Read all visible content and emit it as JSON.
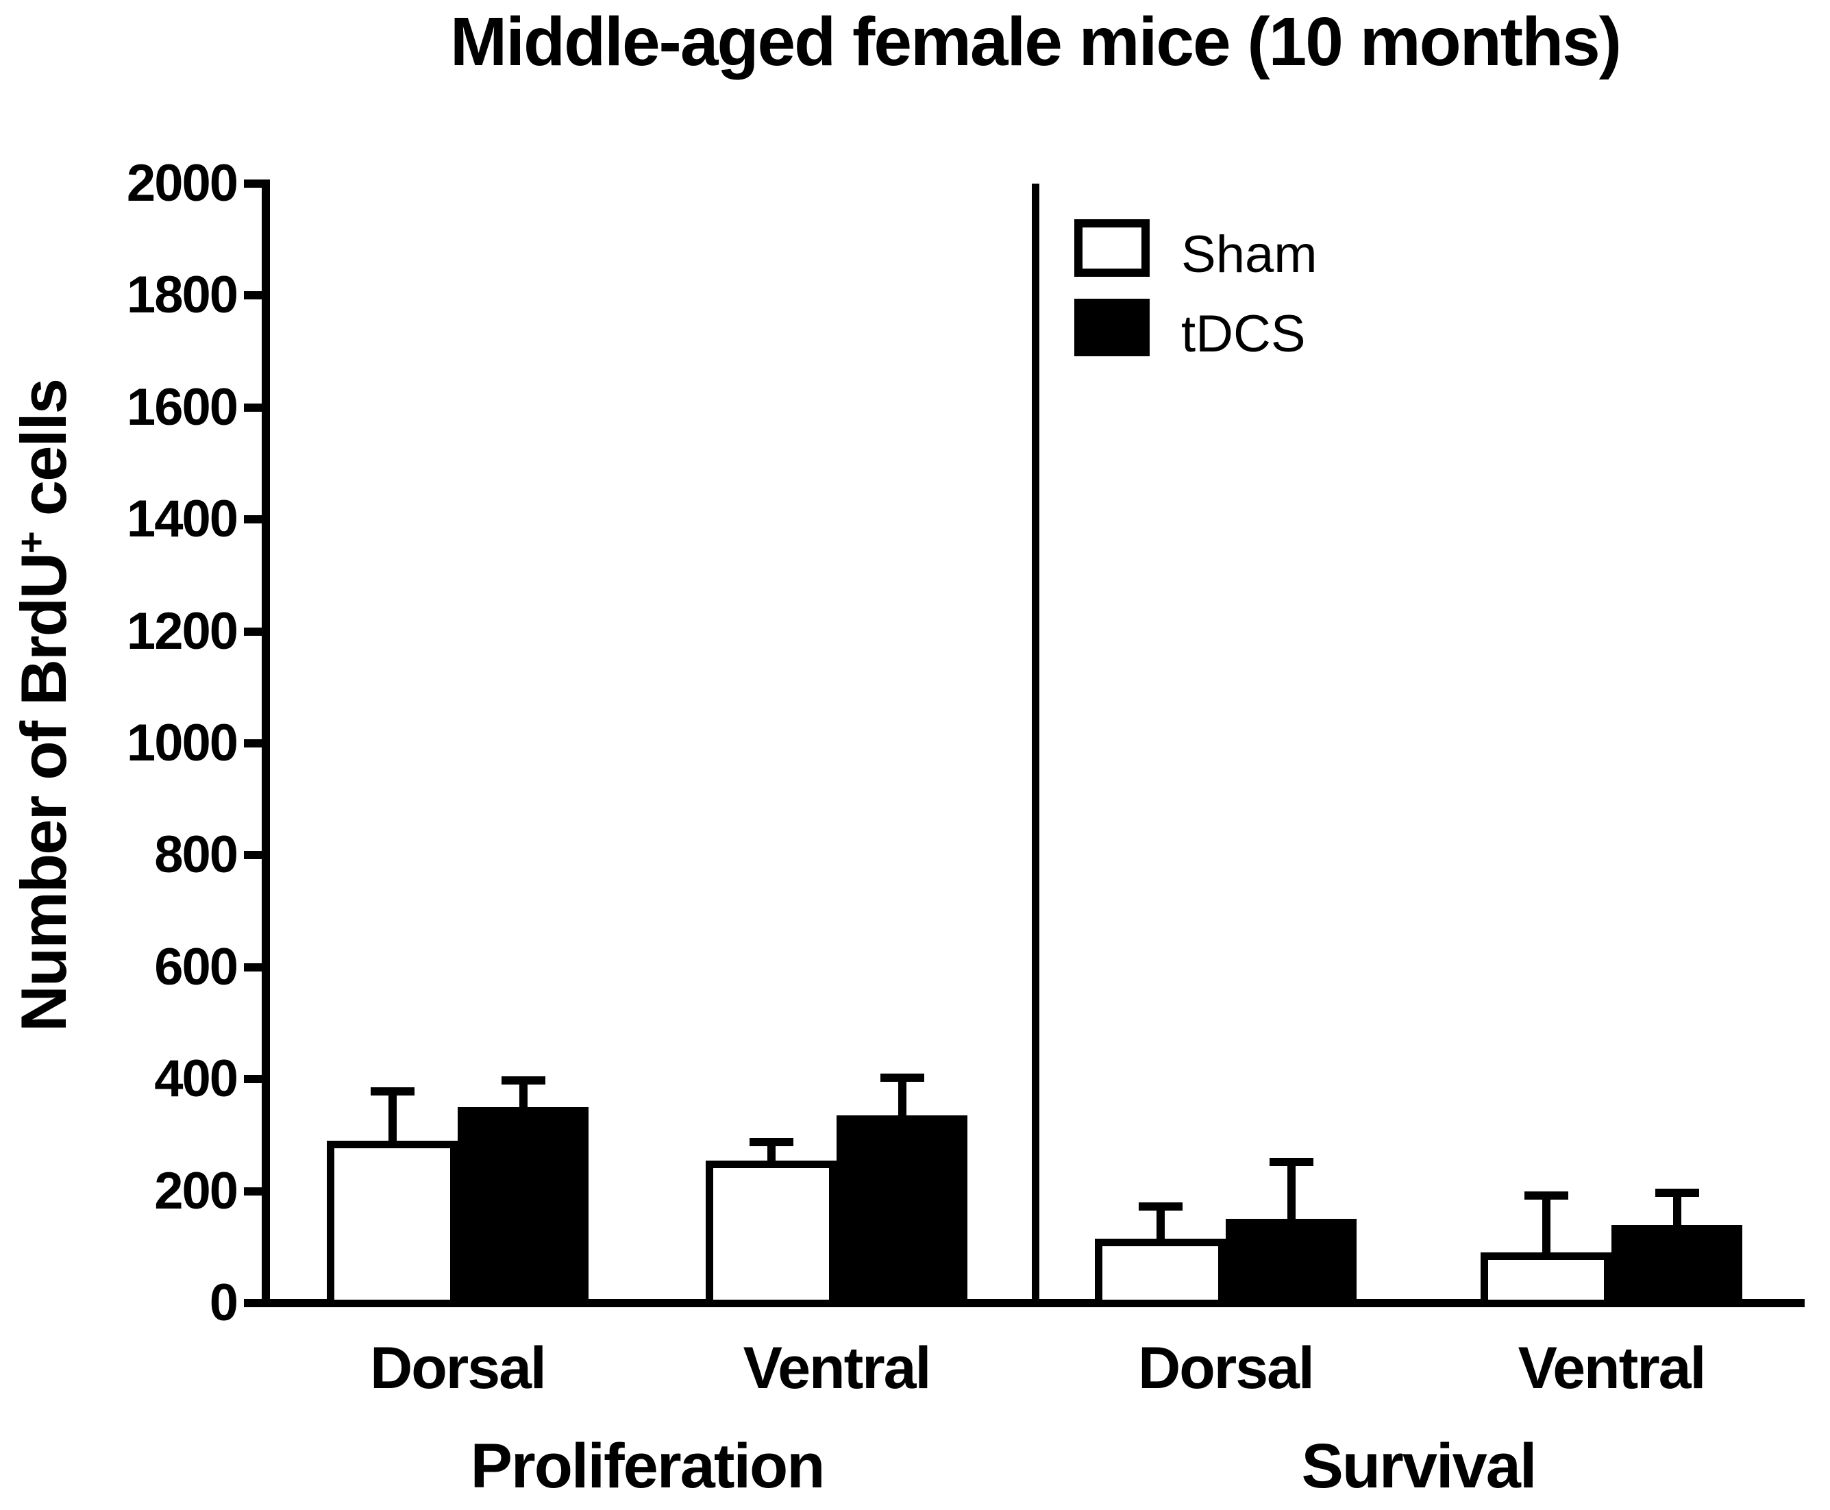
{
  "title": "Middle-aged female mice (10 months)",
  "y_axis": {
    "label_prefix": "Number of BrdU",
    "label_sup": "+",
    "label_suffix": " cells",
    "min": 0,
    "max": 2000,
    "tick_step": 200,
    "ticks": [
      0,
      200,
      400,
      600,
      800,
      1000,
      1200,
      1400,
      1600,
      1800,
      2000
    ]
  },
  "legend": {
    "entries": [
      {
        "label": "Sham",
        "fill": "#ffffff"
      },
      {
        "label": "tDCS",
        "fill": "#000000"
      }
    ]
  },
  "chart_data": {
    "type": "bar",
    "title": "Middle-aged female mice (10 months)",
    "ylabel": "Number of BrdU+ cells",
    "ylim": [
      0,
      2000
    ],
    "ytick_step": 200,
    "grid": false,
    "legend_position": "top-right-inside",
    "error_bars": "upper SEM",
    "sections": [
      {
        "label": "Proliferation",
        "categories": [
          "Dorsal",
          "Ventral"
        ]
      },
      {
        "label": "Survival",
        "categories": [
          "Dorsal",
          "Ventral"
        ]
      }
    ],
    "columns": [
      "Proliferation Dorsal",
      "Proliferation Ventral",
      "Survival Dorsal",
      "Survival Ventral"
    ],
    "series": [
      {
        "name": "Sham",
        "fill": "#ffffff",
        "values": [
          290,
          255,
          115,
          90
        ],
        "errors": [
          95,
          40,
          65,
          110
        ]
      },
      {
        "name": "tDCS",
        "fill": "#000000",
        "values": [
          350,
          335,
          150,
          140
        ],
        "errors": [
          55,
          75,
          110,
          65
        ]
      }
    ]
  }
}
